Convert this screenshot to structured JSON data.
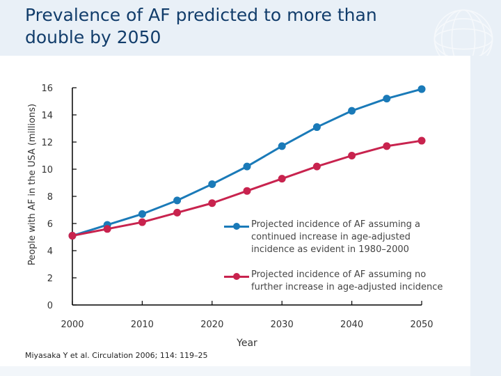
{
  "slide": {
    "title": "Prevalence of AF predicted to more than double by 2050",
    "source": "Miyasaka Y et al. Circulation 2006; 114: 119–25"
  },
  "chart_data": {
    "type": "line",
    "title": "Prevalence of AF predicted to more than double by 2050",
    "xlabel": "Year",
    "ylabel": "People with AF in the USA (millions)",
    "xlim": [
      2000,
      2050
    ],
    "ylim": [
      0,
      16
    ],
    "xticks": [
      2000,
      2010,
      2020,
      2030,
      2040,
      2050
    ],
    "yticks": [
      0,
      2,
      4,
      6,
      8,
      10,
      12,
      14,
      16
    ],
    "grid": false,
    "legend_position": "right",
    "x": [
      2000,
      2005,
      2010,
      2015,
      2020,
      2025,
      2030,
      2035,
      2040,
      2045,
      2050
    ],
    "series": [
      {
        "name": "Projected incidence of AF assuming a continued increase in age-adjusted incidence as evident in 1980–2000",
        "color": "#1a7ab8",
        "values": [
          5.1,
          5.9,
          6.7,
          7.7,
          8.9,
          10.2,
          11.7,
          13.1,
          14.3,
          15.2,
          15.9
        ]
      },
      {
        "name": "Projected incidence of AF assuming no further increase in age-adjusted incidence",
        "color": "#c8234e",
        "values": [
          5.1,
          5.6,
          6.1,
          6.8,
          7.5,
          8.4,
          9.3,
          10.2,
          11.0,
          11.7,
          12.1
        ]
      }
    ]
  }
}
